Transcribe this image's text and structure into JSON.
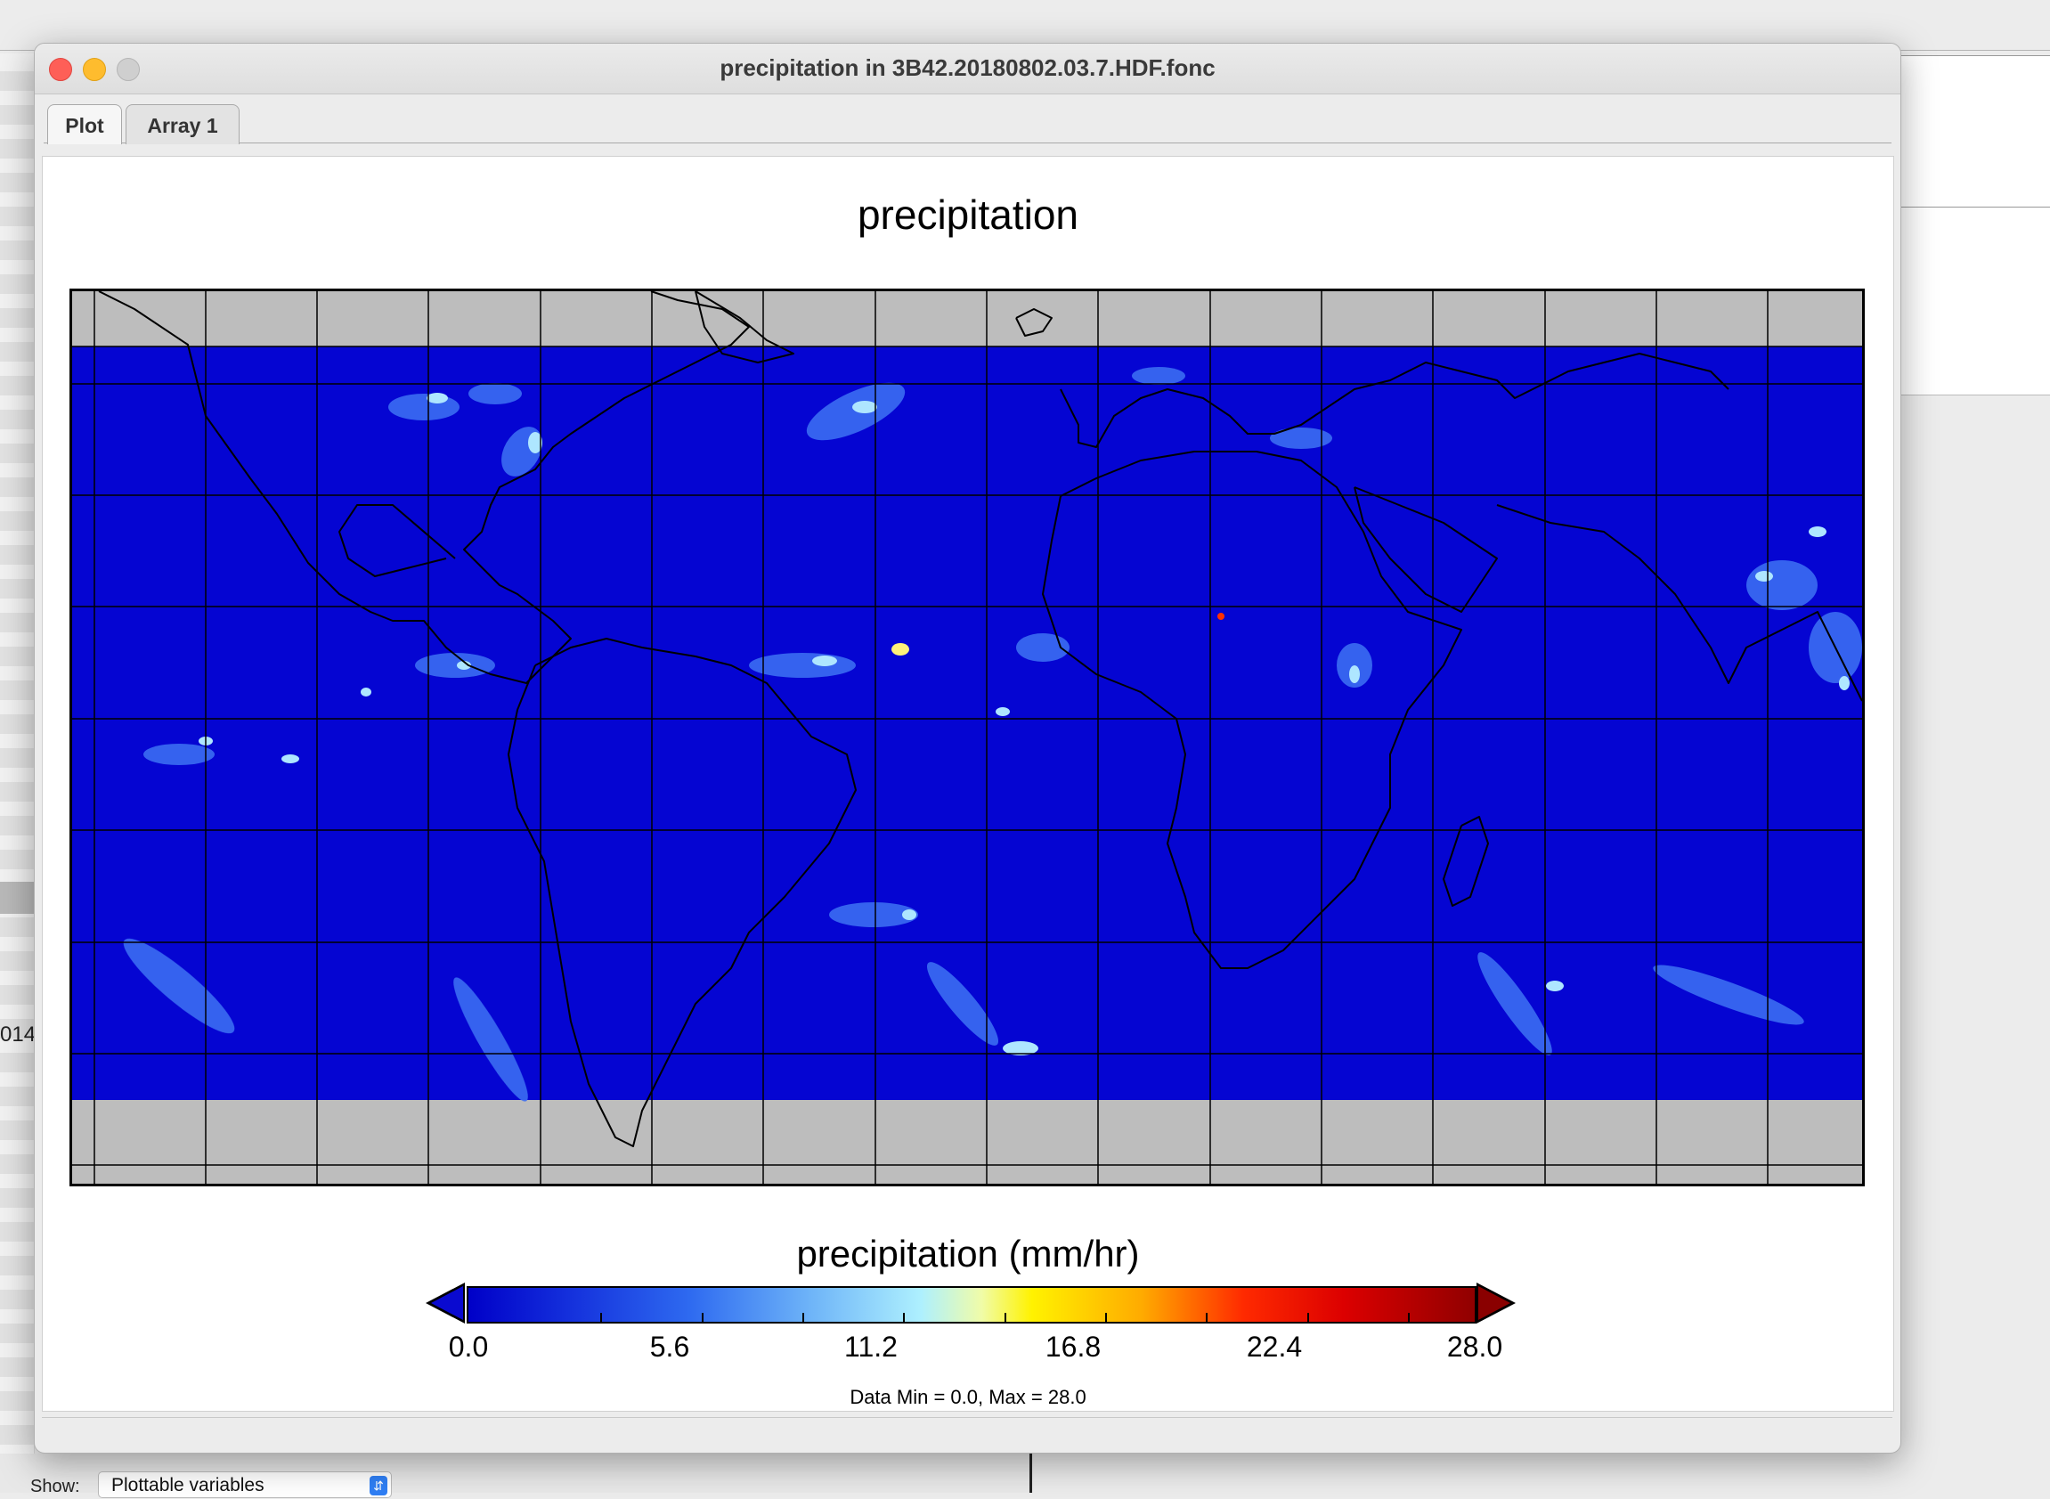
{
  "window": {
    "title": "precipitation in 3B42.20180802.03.7.HDF.fonc",
    "tabs": [
      {
        "label": "Plot",
        "active": true
      },
      {
        "label": "Array 1",
        "active": false
      }
    ]
  },
  "plot": {
    "title": "precipitation",
    "colorbar": {
      "title": "precipitation (mm/hr)",
      "ticks": [
        "0.0",
        "5.6",
        "11.2",
        "16.8",
        "22.4",
        "28.0"
      ],
      "min": 0.0,
      "max": 28.0
    },
    "data_range_text": "Data Min = 0.0, Max = 28.0"
  },
  "background_app": {
    "left_number_fragment": "014",
    "show_label": "Show:",
    "show_select_value": "Plottable variables"
  }
}
